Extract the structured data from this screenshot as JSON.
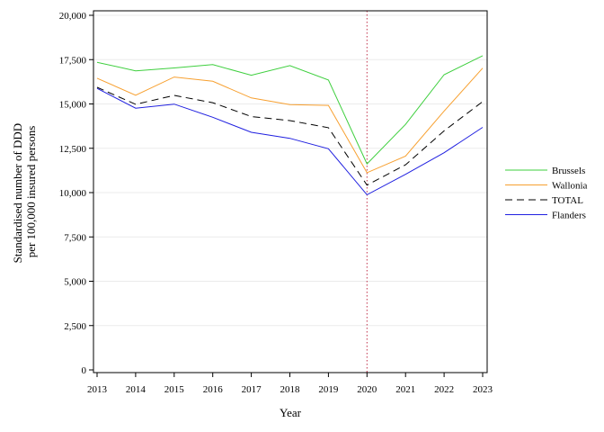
{
  "chart_data": {
    "type": "line",
    "title": "",
    "xlabel": "Year",
    "ylabel_lines": [
      "Standardised number of DDD",
      "per 100,000 insured persons"
    ],
    "x": [
      2013,
      2014,
      2015,
      2016,
      2017,
      2018,
      2019,
      2020,
      2021,
      2022,
      2023
    ],
    "xlim": [
      2013,
      2023
    ],
    "ylim": [
      0,
      20000
    ],
    "yticks": [
      0,
      2500,
      5000,
      7500,
      10000,
      12500,
      15000,
      17500,
      20000
    ],
    "ytick_labels": [
      "0",
      "2,500",
      "5,000",
      "7,500",
      "10,000",
      "12,500",
      "15,000",
      "17,500",
      "20,000"
    ],
    "xtick_labels": [
      "2013",
      "2014",
      "2015",
      "2016",
      "2017",
      "2018",
      "2019",
      "2020",
      "2021",
      "2022",
      "2023"
    ],
    "grid": "horizontal",
    "legend_position": "right",
    "reference_line": {
      "x": 2020,
      "color": "#c0304a",
      "style": "dotted"
    },
    "series": [
      {
        "name": "Brussels",
        "color": "#3ecf3e",
        "dash": "solid",
        "values": [
          17350,
          16870,
          17030,
          17220,
          16620,
          17160,
          16350,
          11620,
          13850,
          16650,
          17720
        ]
      },
      {
        "name": "Wallonia",
        "color": "#f7a030",
        "dash": "solid",
        "values": [
          16450,
          15490,
          16520,
          16280,
          15340,
          14960,
          14920,
          11120,
          12060,
          14600,
          17020
        ]
      },
      {
        "name": "TOTAL",
        "color": "#000000",
        "dash": "dashed",
        "values": [
          15940,
          14980,
          15480,
          15070,
          14290,
          14060,
          13660,
          10420,
          11570,
          13480,
          15130
        ]
      },
      {
        "name": "Flanders",
        "color": "#2020e0",
        "dash": "solid",
        "values": [
          15880,
          14760,
          14990,
          14250,
          13400,
          13060,
          12470,
          9880,
          11030,
          12250,
          13680
        ]
      }
    ]
  }
}
